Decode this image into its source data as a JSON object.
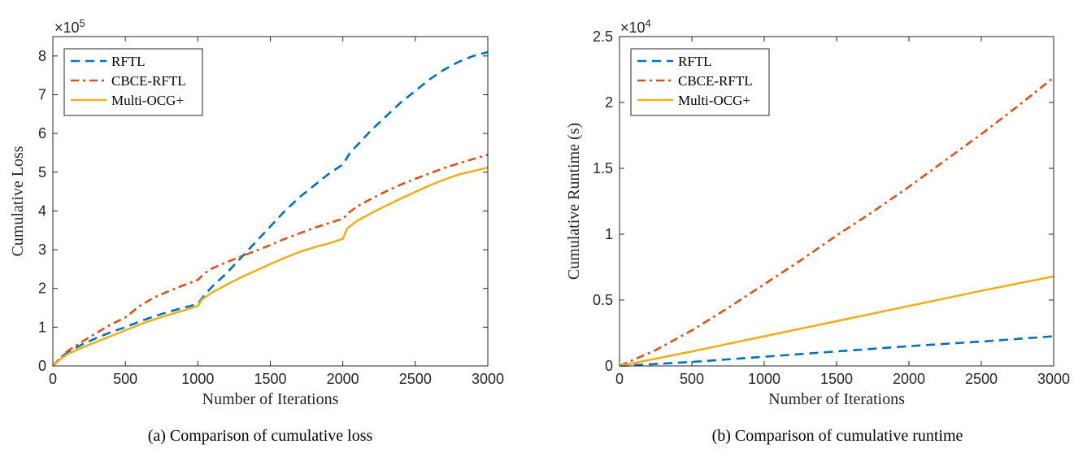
{
  "chart_data": [
    {
      "type": "line",
      "caption": "(a)  Comparison of cumulative loss",
      "xlabel": "Number of Iterations",
      "ylabel": "Cumulative Loss",
      "xlim": [
        0,
        3000
      ],
      "ylim": [
        0,
        850000
      ],
      "x_ticks": [
        0,
        500,
        1000,
        1500,
        2000,
        2500,
        3000
      ],
      "x_tick_labels": [
        "0",
        "500",
        "1000",
        "1500",
        "2000",
        "2500",
        "3000"
      ],
      "y_ticks": [
        0,
        100000,
        200000,
        300000,
        400000,
        500000,
        600000,
        700000,
        800000
      ],
      "y_tick_labels": [
        "0",
        "1",
        "2",
        "3",
        "4",
        "5",
        "6",
        "7",
        "8"
      ],
      "y_exponent_base": "×10",
      "y_exponent_power": "5",
      "legend_position": "top-left",
      "series": [
        {
          "name": "RFTL",
          "color": "#0072BD",
          "style": "dashed",
          "x": [
            0,
            50,
            100,
            200,
            300,
            400,
            500,
            600,
            700,
            800,
            900,
            1000,
            1050,
            1100,
            1200,
            1300,
            1400,
            1500,
            1600,
            1700,
            1800,
            1900,
            2000,
            2050,
            2100,
            2200,
            2300,
            2400,
            2500,
            2600,
            2700,
            2800,
            2900,
            3000
          ],
          "y": [
            0,
            20000,
            35000,
            55000,
            72000,
            87000,
            100000,
            115000,
            128000,
            140000,
            150000,
            160000,
            185000,
            205000,
            240000,
            280000,
            320000,
            360000,
            400000,
            435000,
            465000,
            495000,
            520000,
            550000,
            570000,
            610000,
            645000,
            680000,
            710000,
            740000,
            765000,
            785000,
            800000,
            810000
          ]
        },
        {
          "name": "CBCE-RFTL",
          "color": "#D95319",
          "style": "dashdot",
          "x": [
            0,
            50,
            100,
            200,
            300,
            400,
            500,
            600,
            700,
            800,
            900,
            1000,
            1050,
            1100,
            1200,
            1300,
            1400,
            1500,
            1600,
            1700,
            1800,
            1900,
            2000,
            2050,
            2100,
            2200,
            2300,
            2400,
            2500,
            2600,
            2700,
            2800,
            2900,
            3000
          ],
          "y": [
            0,
            20000,
            38000,
            62000,
            85000,
            107000,
            125000,
            155000,
            177000,
            193000,
            208000,
            222000,
            240000,
            252000,
            268000,
            283000,
            297000,
            312000,
            328000,
            342000,
            356000,
            368000,
            380000,
            398000,
            412000,
            432000,
            451000,
            468000,
            483000,
            497000,
            511000,
            523000,
            534000,
            545000
          ]
        },
        {
          "name": "Multi-OCG+",
          "color": "#EDB120",
          "style": "solid",
          "x": [
            0,
            50,
            100,
            200,
            300,
            400,
            500,
            600,
            700,
            800,
            900,
            1000,
            1030,
            1100,
            1200,
            1300,
            1400,
            1500,
            1600,
            1700,
            1800,
            1900,
            2000,
            2030,
            2100,
            2200,
            2300,
            2400,
            2500,
            2600,
            2700,
            2800,
            2900,
            3000
          ],
          "y": [
            0,
            17000,
            30000,
            47000,
            62000,
            77000,
            92000,
            107000,
            120000,
            132000,
            143000,
            155000,
            172000,
            190000,
            210000,
            229000,
            246000,
            263000,
            279000,
            294000,
            306000,
            316000,
            328000,
            355000,
            375000,
            395000,
            414000,
            432000,
            449000,
            466000,
            481000,
            494000,
            503000,
            512000
          ]
        }
      ]
    },
    {
      "type": "line",
      "caption": "(b)  Comparison of cumulative runtime",
      "xlabel": "Number of Iterations",
      "ylabel": "Cumulative Runtime (s)",
      "xlim": [
        0,
        3000
      ],
      "ylim": [
        0,
        25000
      ],
      "x_ticks": [
        0,
        500,
        1000,
        1500,
        2000,
        2500,
        3000
      ],
      "x_tick_labels": [
        "0",
        "500",
        "1000",
        "1500",
        "2000",
        "2500",
        "3000"
      ],
      "y_ticks": [
        0,
        5000,
        10000,
        15000,
        20000,
        25000
      ],
      "y_tick_labels": [
        "0",
        "0.5",
        "1",
        "1.5",
        "2",
        "2.5"
      ],
      "y_exponent_base": "×10",
      "y_exponent_power": "4",
      "legend_position": "top-left",
      "series": [
        {
          "name": "RFTL",
          "color": "#0072BD",
          "style": "dashed",
          "x": [
            0,
            500,
            1000,
            1500,
            2000,
            2500,
            3000
          ],
          "y": [
            0,
            300,
            700,
            1100,
            1500,
            1850,
            2250
          ]
        },
        {
          "name": "CBCE-RFTL",
          "color": "#D95319",
          "style": "dashdot",
          "x": [
            0,
            250,
            500,
            750,
            1000,
            1250,
            1500,
            1750,
            2000,
            2250,
            2500,
            2750,
            3000
          ],
          "y": [
            0,
            1200,
            2700,
            4400,
            6200,
            8000,
            9900,
            11700,
            13600,
            15600,
            17600,
            19700,
            21900
          ]
        },
        {
          "name": "Multi-OCG+",
          "color": "#EDB120",
          "style": "solid",
          "x": [
            0,
            500,
            1000,
            1500,
            2000,
            2500,
            3000
          ],
          "y": [
            0,
            1100,
            2250,
            3400,
            4550,
            5700,
            6800
          ]
        }
      ]
    }
  ]
}
